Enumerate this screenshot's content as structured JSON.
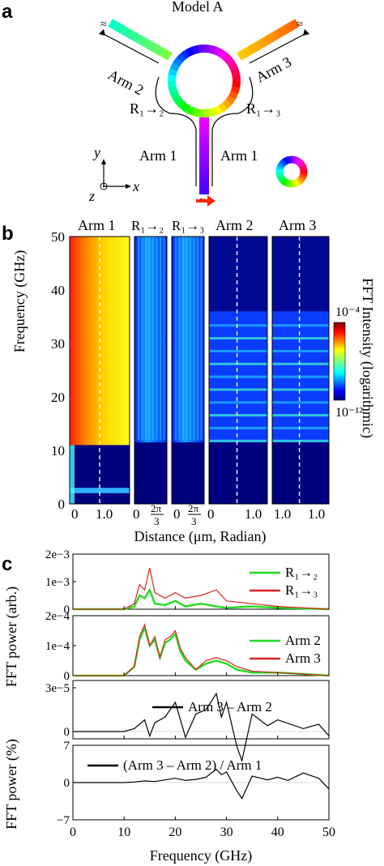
{
  "panel_labels": {
    "a": "a",
    "b": "b",
    "c": "c"
  },
  "diagram": {
    "title": "Model A",
    "arm1_left": "Arm 1",
    "arm1_right": "Arm 1",
    "arm2": "Arm 2",
    "arm3": "Arm 3",
    "r12": "R₁→₂",
    "r13": "R₁→₃",
    "axis_y": "y",
    "axis_x": "x",
    "axis_z": "z"
  },
  "heatmap": {
    "panel_titles": [
      "Arm 1",
      "R₁→₂",
      "R₁→₃",
      "Arm 2",
      "Arm 3"
    ],
    "ylabel": "Frequency (GHz)",
    "xlabel": "Distance (μm, Radian)",
    "yticks": [
      "0",
      "10",
      "20",
      "30",
      "40",
      "50"
    ],
    "xticks": [
      "0",
      "1.0",
      "0",
      "2π",
      "3",
      "0",
      "2π",
      "3",
      "0",
      "1.0",
      "0",
      "1.0",
      "0",
      "1.0"
    ],
    "colorbar_label": "FFT Intensity (logarithmic)",
    "colorbar_max": "10⁻⁴",
    "colorbar_min": "10⁻¹²",
    "colors": {
      "low": "#00007f",
      "high": "#7f0000"
    }
  },
  "chart_data": [
    {
      "type": "line",
      "title": "",
      "xlabel": "Frequency (GHz)",
      "ylabel": "FFT power (arb.)",
      "xlim": [
        0,
        50
      ],
      "ylim": [
        0,
        0.002
      ],
      "ytick_labels": [
        "0",
        "1e−3",
        "2e−3"
      ],
      "x": [
        0,
        10,
        12,
        13,
        14,
        15,
        16,
        18,
        20,
        22,
        25,
        28,
        30,
        35,
        40,
        45,
        50
      ],
      "series": [
        {
          "name": "R₁→₂",
          "color": "#22dd22",
          "values": [
            0,
            0,
            0.0001,
            0.0005,
            0.0004,
            0.0007,
            0.0002,
            0.00015,
            0.0003,
            0.0001,
            0.0002,
            0.0001,
            5e-05,
            0.0001,
            5e-05,
            3e-05,
            0
          ]
        },
        {
          "name": "R₁→₃",
          "color": "#dd2222",
          "values": [
            0,
            0,
            0.0002,
            0.0009,
            0.0007,
            0.0015,
            0.0006,
            0.0004,
            0.0006,
            0.0004,
            0.0005,
            0.0007,
            0.0003,
            0.0002,
            0.0001,
            5e-05,
            0
          ]
        }
      ]
    },
    {
      "type": "line",
      "xlabel": "Frequency (GHz)",
      "xlim": [
        0,
        50
      ],
      "ylim": [
        0,
        0.0002
      ],
      "ytick_labels": [
        "0",
        "1e−4",
        "2e−4"
      ],
      "x": [
        0,
        10,
        12,
        13,
        14,
        15,
        16,
        17,
        18,
        19,
        20,
        21,
        22,
        24,
        26,
        28,
        30,
        32,
        35,
        40,
        45,
        50
      ],
      "series": [
        {
          "name": "Arm 2",
          "color": "#22dd22",
          "values": [
            0,
            0,
            3e-05,
            0.00012,
            0.00016,
            0.0001,
            0.00012,
            6e-05,
            0.00011,
            0.00012,
            0.00014,
            8e-05,
            5e-05,
            2e-05,
            4e-05,
            5e-05,
            4e-05,
            2e-05,
            1e-05,
            1e-05,
            5e-06,
            0
          ]
        },
        {
          "name": "Arm 3",
          "color": "#dd2222",
          "values": [
            0,
            0,
            3e-05,
            0.00013,
            0.00017,
            0.0001,
            0.00013,
            6e-05,
            0.00012,
            0.00013,
            0.00015,
            9e-05,
            6e-05,
            2e-05,
            5e-05,
            6e-05,
            5e-05,
            3e-05,
            1.5e-05,
            1e-05,
            5e-06,
            0
          ]
        }
      ]
    },
    {
      "type": "line",
      "ylabel": "FFT power (%)",
      "xlim": [
        0,
        50
      ],
      "ylim": [
        -5e-06,
        3.5e-05
      ],
      "ytick_labels": [
        "0",
        "3e−5"
      ],
      "x": [
        0,
        10,
        12,
        14,
        15,
        16,
        18,
        20,
        22,
        24,
        26,
        28,
        29,
        30,
        32,
        33,
        35,
        38,
        40,
        45,
        48,
        50
      ],
      "series": [
        {
          "name": "Arm 3 – Arm 2",
          "color": "#000000",
          "values": [
            0,
            0,
            2e-06,
            8e-06,
            -3e-06,
            6e-06,
            1e-05,
            2e-05,
            -4e-06,
            1.2e-05,
            1.5e-05,
            2.6e-05,
            1e-05,
            2e-05,
            -1e-05,
            -2e-05,
            1.2e-05,
            4e-06,
            8e-06,
            2e-06,
            5e-06,
            -3e-06
          ]
        }
      ]
    },
    {
      "type": "line",
      "xlabel": "Frequency (GHz)",
      "xlim": [
        0,
        50
      ],
      "ylim": [
        -7,
        7
      ],
      "ytick_labels": [
        "−7",
        "0",
        "7"
      ],
      "xtick_labels": [
        "0",
        "10",
        "20",
        "30",
        "40",
        "50"
      ],
      "x": [
        0,
        10,
        12,
        14,
        16,
        18,
        20,
        22,
        24,
        26,
        28,
        29,
        30,
        32,
        33,
        35,
        38,
        40,
        42,
        45,
        48,
        50
      ],
      "series": [
        {
          "name": "(Arm 3 – Arm 2) / Arm 1",
          "color": "#000000",
          "values": [
            0,
            0,
            0.1,
            0.3,
            0.2,
            0.5,
            0.8,
            0.4,
            0.6,
            1.0,
            2.5,
            1.5,
            2.0,
            -1.5,
            -3.0,
            1.2,
            0.5,
            1.0,
            0.4,
            1.8,
            0.8,
            -1.2
          ]
        }
      ]
    }
  ]
}
